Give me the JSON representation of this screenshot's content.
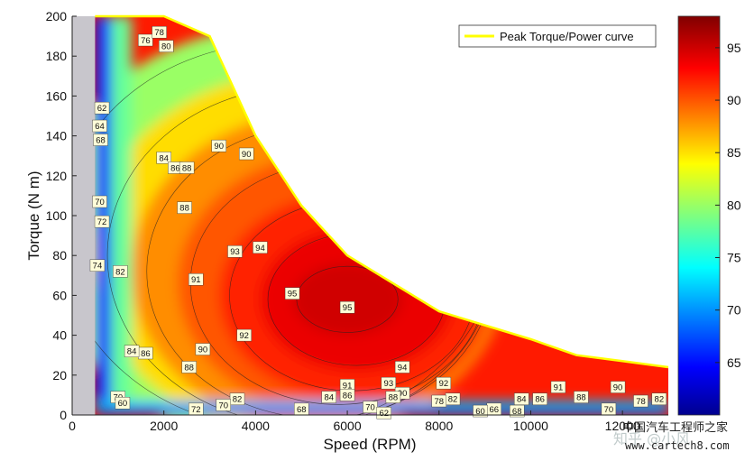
{
  "chart_data": {
    "type": "contour",
    "xlabel": "Speed (RPM)",
    "ylabel": "Torque (N m)",
    "xlim": [
      0,
      13000
    ],
    "ylim": [
      0,
      200
    ],
    "x_ticks": [
      "0",
      "2000",
      "4000",
      "6000",
      "8000",
      "10000",
      "12000"
    ],
    "y_ticks": [
      "0",
      "20",
      "40",
      "60",
      "80",
      "100",
      "120",
      "140",
      "160",
      "180",
      "200"
    ],
    "colorbar": {
      "range": [
        60,
        98
      ],
      "ticks": [
        "65",
        "70",
        "75",
        "80",
        "85",
        "90",
        "95"
      ],
      "colormap": "jet"
    },
    "legend": {
      "entries": [
        "Peak Torque/Power curve"
      ],
      "placement": "top-right",
      "line_color": "#ffff00"
    },
    "peak_curve": {
      "x": [
        500,
        2000,
        3000,
        4000,
        5000,
        6000,
        8000,
        10000,
        11000,
        12000,
        13000
      ],
      "y": [
        200,
        200,
        190,
        140,
        105,
        80,
        52,
        38,
        30,
        27,
        24
      ]
    },
    "contour_labels": [
      {
        "text": "62",
        "x": 650,
        "y": 154
      },
      {
        "text": "64",
        "x": 600,
        "y": 145
      },
      {
        "text": "68",
        "x": 620,
        "y": 138
      },
      {
        "text": "70",
        "x": 600,
        "y": 107
      },
      {
        "text": "72",
        "x": 650,
        "y": 97
      },
      {
        "text": "74",
        "x": 550,
        "y": 75
      },
      {
        "text": "76",
        "x": 1600,
        "y": 188
      },
      {
        "text": "78",
        "x": 1900,
        "y": 192
      },
      {
        "text": "80",
        "x": 2050,
        "y": 185
      },
      {
        "text": "82",
        "x": 1050,
        "y": 72
      },
      {
        "text": "84",
        "x": 2000,
        "y": 129
      },
      {
        "text": "86",
        "x": 2250,
        "y": 124
      },
      {
        "text": "88",
        "x": 2500,
        "y": 124
      },
      {
        "text": "88",
        "x": 2450,
        "y": 104
      },
      {
        "text": "90",
        "x": 3200,
        "y": 135
      },
      {
        "text": "90",
        "x": 3800,
        "y": 131
      },
      {
        "text": "91",
        "x": 2700,
        "y": 68
      },
      {
        "text": "93",
        "x": 3550,
        "y": 82
      },
      {
        "text": "94",
        "x": 4100,
        "y": 84
      },
      {
        "text": "95",
        "x": 4800,
        "y": 61
      },
      {
        "text": "95",
        "x": 6000,
        "y": 54
      },
      {
        "text": "92",
        "x": 3750,
        "y": 40
      },
      {
        "text": "90",
        "x": 2850,
        "y": 33
      },
      {
        "text": "88",
        "x": 2550,
        "y": 24
      },
      {
        "text": "86",
        "x": 1600,
        "y": 31
      },
      {
        "text": "84",
        "x": 1300,
        "y": 32
      },
      {
        "text": "94",
        "x": 7200,
        "y": 24
      },
      {
        "text": "93",
        "x": 6900,
        "y": 16
      },
      {
        "text": "92",
        "x": 8100,
        "y": 16
      },
      {
        "text": "91",
        "x": 6000,
        "y": 15
      },
      {
        "text": "90",
        "x": 7200,
        "y": 11
      },
      {
        "text": "91",
        "x": 10600,
        "y": 14
      },
      {
        "text": "90",
        "x": 11900,
        "y": 14
      },
      {
        "text": "88",
        "x": 11100,
        "y": 9
      },
      {
        "text": "88",
        "x": 7000,
        "y": 9
      },
      {
        "text": "86",
        "x": 6000,
        "y": 10
      },
      {
        "text": "86",
        "x": 10200,
        "y": 8
      },
      {
        "text": "84",
        "x": 5600,
        "y": 9
      },
      {
        "text": "84",
        "x": 9800,
        "y": 8
      },
      {
        "text": "82",
        "x": 8300,
        "y": 8
      },
      {
        "text": "82",
        "x": 3600,
        "y": 8
      },
      {
        "text": "78",
        "x": 8000,
        "y": 7
      },
      {
        "text": "78",
        "x": 12400,
        "y": 7
      },
      {
        "text": "82",
        "x": 12800,
        "y": 8
      },
      {
        "text": "70",
        "x": 1000,
        "y": 9
      },
      {
        "text": "70",
        "x": 3300,
        "y": 5
      },
      {
        "text": "72",
        "x": 2700,
        "y": 3
      },
      {
        "text": "70",
        "x": 6500,
        "y": 4
      },
      {
        "text": "70",
        "x": 11700,
        "y": 3
      },
      {
        "text": "68",
        "x": 5000,
        "y": 3
      },
      {
        "text": "68",
        "x": 9700,
        "y": 2
      },
      {
        "text": "66",
        "x": 9200,
        "y": 3
      },
      {
        "text": "60",
        "x": 8900,
        "y": 2
      },
      {
        "text": "62",
        "x": 6800,
        "y": 1
      },
      {
        "text": "60",
        "x": 1100,
        "y": 6
      }
    ]
  },
  "watermark": {
    "line1": "中国汽车工程师之家",
    "line2": "www.cartech8.com",
    "overlay": "知乎 @小风"
  }
}
